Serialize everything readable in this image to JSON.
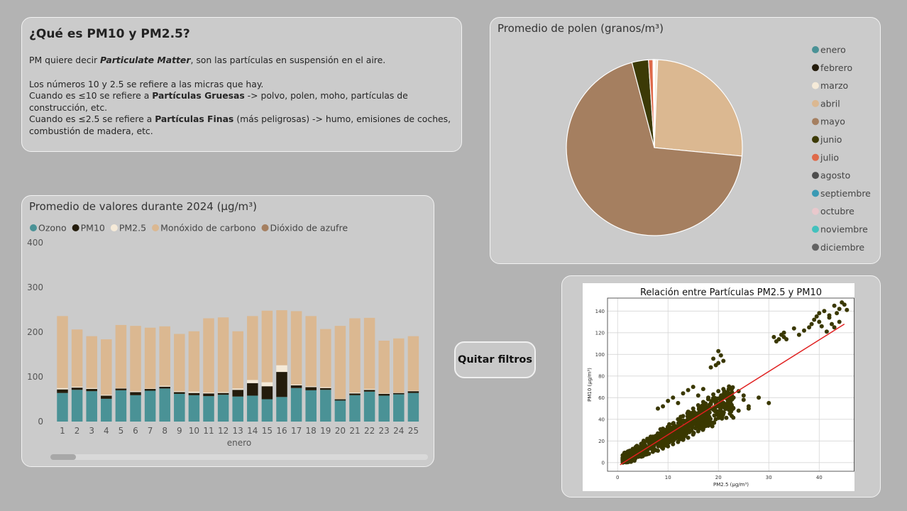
{
  "info": {
    "title": "¿Qué es PM10 y PM2.5?",
    "line1_prefix": "PM quiere decir ",
    "line1_bold": "Particulate Matter",
    "line1_suffix": ", son las partículas en suspensión en el aire.",
    "line2": "Los números 10 y 2.5 se refiere a las micras que hay.",
    "line3_prefix": "Cuando es ≤10 se refiere a ",
    "line3_bold": "Partículas Gruesas",
    "line3_suffix": " -> polvo, polen, moho, partículas de construcción, etc.",
    "line4_prefix": "Cuando es ≤2.5 se refiere a ",
    "line4_bold": "Partículas Finas",
    "line4_suffix": " (más peligrosas) -> humo, emisiones de coches, combustión de madera, etc."
  },
  "button": {
    "label": "Quitar filtros"
  },
  "colors": {
    "ozono": "#4a9296",
    "pm10": "#241c0c",
    "pm25": "#f5ead8",
    "co": "#dbb891",
    "so2": "#a57f60"
  },
  "chart_data": [
    {
      "type": "bar",
      "stacked": true,
      "title": "Promedio de valores durante 2024 (µg/m³)",
      "xlabel": "enero",
      "ylim": [
        0,
        400
      ],
      "yticks": [
        0,
        100,
        200,
        300,
        400
      ],
      "legend_position": "top-left",
      "categories": [
        "1",
        "2",
        "3",
        "4",
        "5",
        "6",
        "7",
        "8",
        "9",
        "10",
        "11",
        "12",
        "13",
        "14",
        "15",
        "16",
        "17",
        "18",
        "19",
        "20",
        "21",
        "22",
        "23",
        "24",
        "25"
      ],
      "series": [
        {
          "name": "Ozono",
          "color": "#4a9296",
          "values": [
            64,
            71,
            68,
            51,
            70,
            59,
            69,
            74,
            62,
            59,
            57,
            60,
            56,
            58,
            50,
            55,
            75,
            70,
            71,
            47,
            59,
            67,
            58,
            61,
            64
          ]
        },
        {
          "name": "PM10",
          "color": "#241c0c",
          "values": [
            8,
            5,
            5,
            7,
            4,
            7,
            4,
            4,
            4,
            5,
            6,
            4,
            15,
            28,
            29,
            56,
            6,
            7,
            4,
            3,
            4,
            4,
            4,
            3,
            4
          ]
        },
        {
          "name": "PM2.5",
          "color": "#f5ead8",
          "values": [
            3,
            2,
            2,
            2,
            1,
            2,
            1,
            2,
            2,
            3,
            2,
            2,
            3,
            7,
            9,
            15,
            2,
            2,
            2,
            1,
            2,
            2,
            1,
            1,
            1
          ]
        },
        {
          "name": "Monóxido de carbono",
          "color": "#dbb891",
          "values": [
            161,
            128,
            116,
            124,
            141,
            146,
            136,
            133,
            128,
            135,
            166,
            167,
            128,
            143,
            160,
            123,
            164,
            157,
            130,
            163,
            166,
            159,
            118,
            121,
            122
          ]
        },
        {
          "name": "Dióxido de azufre",
          "color": "#a57f60",
          "values": [
            0,
            0,
            0,
            0,
            0,
            0,
            0,
            0,
            0,
            0,
            0,
            0,
            0,
            0,
            0,
            0,
            0,
            0,
            0,
            0,
            0,
            0,
            0,
            0,
            0
          ]
        }
      ]
    },
    {
      "type": "pie",
      "title": "Promedio de polen (granos/m³)",
      "legend_position": "right",
      "categories": [
        "enero",
        "febrero",
        "marzo",
        "abril",
        "mayo",
        "junio",
        "julio",
        "agosto",
        "septiembre",
        "octubre",
        "noviembre",
        "diciembre"
      ],
      "colors": [
        "#4a9296",
        "#241c0c",
        "#f5ead8",
        "#dbb891",
        "#a57f60",
        "#3c3a06",
        "#df6a4a",
        "#4d4d4d",
        "#3a9ab4",
        "#e9c8cc",
        "#43c1bd",
        "#626262"
      ],
      "values": [
        0.05,
        0.05,
        0.5,
        25.6,
        68.5,
        3.0,
        0.8,
        0.05,
        0.05,
        0.05,
        0.05,
        0.05
      ]
    },
    {
      "type": "scatter",
      "title": "Relación entre Partículas PM2.5 y PM10",
      "xlabel": "PM2.5 (µg/m³)",
      "ylabel": "PM10 (µg/m³)",
      "xlim": [
        -2,
        47
      ],
      "ylim": [
        -8,
        152
      ],
      "xticks": [
        0,
        10,
        20,
        30,
        40
      ],
      "yticks": [
        0,
        20,
        40,
        60,
        80,
        100,
        120,
        140
      ],
      "grid": true,
      "point_color": "#3a3800",
      "line_color": "#e02020",
      "regression": {
        "x": [
          0.5,
          45
        ],
        "y": [
          -2,
          128
        ]
      },
      "points": [
        [
          1,
          3
        ],
        [
          1.5,
          5
        ],
        [
          2,
          4
        ],
        [
          2.5,
          7
        ],
        [
          3,
          6
        ],
        [
          3.5,
          9
        ],
        [
          4,
          8
        ],
        [
          4.5,
          12
        ],
        [
          5,
          10
        ],
        [
          5.5,
          14
        ],
        [
          6,
          12
        ],
        [
          6.5,
          16
        ],
        [
          7,
          14
        ],
        [
          7.5,
          18
        ],
        [
          8,
          17
        ],
        [
          8.5,
          21
        ],
        [
          9,
          19
        ],
        [
          9.5,
          24
        ],
        [
          10,
          22
        ],
        [
          10.5,
          26
        ],
        [
          11,
          25
        ],
        [
          11.5,
          29
        ],
        [
          12,
          27
        ],
        [
          12.5,
          32
        ],
        [
          13,
          30
        ],
        [
          13.5,
          35
        ],
        [
          14,
          33
        ],
        [
          14.5,
          38
        ],
        [
          15,
          36
        ],
        [
          15.5,
          41
        ],
        [
          16,
          39
        ],
        [
          16.5,
          44
        ],
        [
          17,
          42
        ],
        [
          17.5,
          47
        ],
        [
          18,
          45
        ],
        [
          18.5,
          50
        ],
        [
          19,
          49
        ],
        [
          19.5,
          54
        ],
        [
          20,
          52
        ],
        [
          20.5,
          57
        ],
        [
          21,
          55
        ],
        [
          21.5,
          60
        ],
        [
          22,
          58
        ],
        [
          3,
          10
        ],
        [
          4,
          14
        ],
        [
          5,
          18
        ],
        [
          6,
          20
        ],
        [
          7,
          24
        ],
        [
          8,
          27
        ],
        [
          9,
          30
        ],
        [
          10,
          33
        ],
        [
          11,
          36
        ],
        [
          12,
          40
        ],
        [
          13,
          43
        ],
        [
          14,
          47
        ],
        [
          15,
          50
        ],
        [
          16,
          53
        ],
        [
          17,
          56
        ],
        [
          18,
          60
        ],
        [
          19,
          63
        ],
        [
          20,
          66
        ],
        [
          21,
          68
        ],
        [
          5,
          6
        ],
        [
          6,
          8
        ],
        [
          7,
          10
        ],
        [
          8,
          11
        ],
        [
          9,
          13
        ],
        [
          10,
          15
        ],
        [
          11,
          17
        ],
        [
          12,
          19
        ],
        [
          13,
          21
        ],
        [
          14,
          23
        ],
        [
          15,
          26
        ],
        [
          16,
          29
        ],
        [
          17,
          31
        ],
        [
          18,
          34
        ],
        [
          19,
          37
        ],
        [
          13,
          64
        ],
        [
          14,
          67
        ],
        [
          15,
          70
        ],
        [
          16,
          62
        ],
        [
          17,
          68
        ],
        [
          22,
          64
        ],
        [
          23,
          60
        ],
        [
          24,
          66
        ],
        [
          25,
          58
        ],
        [
          26,
          52
        ],
        [
          24,
          48
        ],
        [
          25,
          62
        ],
        [
          19,
          96
        ],
        [
          20,
          103
        ],
        [
          20.5,
          99
        ],
        [
          21,
          94
        ],
        [
          19.5,
          90
        ],
        [
          18.5,
          88
        ],
        [
          20,
          92
        ],
        [
          10,
          57
        ],
        [
          11,
          60
        ],
        [
          12,
          55
        ],
        [
          9,
          52
        ],
        [
          8,
          50
        ],
        [
          28,
          60
        ],
        [
          30,
          55
        ],
        [
          26,
          50
        ],
        [
          31,
          116
        ],
        [
          32,
          114
        ],
        [
          33,
          120
        ],
        [
          33,
          116
        ],
        [
          31.5,
          112
        ],
        [
          32.5,
          118
        ],
        [
          33.5,
          114
        ],
        [
          38,
          125
        ],
        [
          39,
          132
        ],
        [
          40,
          130
        ],
        [
          40,
          138
        ],
        [
          41,
          140
        ],
        [
          42,
          136
        ],
        [
          42.5,
          128
        ],
        [
          43,
          145
        ],
        [
          44,
          142
        ],
        [
          44.5,
          148
        ],
        [
          45,
          146
        ],
        [
          45.5,
          141
        ],
        [
          43.5,
          138
        ],
        [
          41.5,
          121
        ],
        [
          40.5,
          126
        ],
        [
          39.5,
          135
        ],
        [
          38.5,
          128
        ],
        [
          37,
          122
        ],
        [
          36,
          118
        ],
        [
          35,
          124
        ],
        [
          42,
          134
        ],
        [
          44,
          130
        ],
        [
          43,
          125
        ]
      ]
    }
  ]
}
